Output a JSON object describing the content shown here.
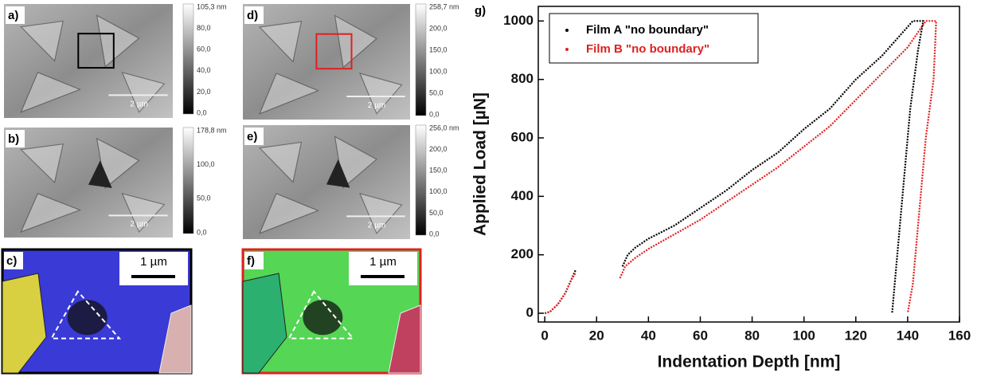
{
  "panels": [
    {
      "label": "a)",
      "colorbar": [
        "105,3 nm",
        "80,0",
        "60,0",
        "40,0",
        "20,0",
        "0,0"
      ],
      "scale": "2 µm"
    },
    {
      "label": "b)",
      "colorbar": [
        "178,8 nm",
        "100,0",
        "50,0",
        "0,0"
      ],
      "scale": "2 µm"
    },
    {
      "label": "c)",
      "scale": "1 µm"
    },
    {
      "label": "d)",
      "colorbar": [
        "258,7 nm",
        "200,0",
        "150,0",
        "100,0",
        "50,0",
        "0,0"
      ],
      "scale": "2 µm"
    },
    {
      "label": "e)",
      "colorbar": [
        "256,0 nm",
        "200,0",
        "150,0",
        "100,0",
        "50,0",
        "0,0"
      ],
      "scale": "2 µm"
    },
    {
      "label": "f)",
      "scale": "1 µm"
    }
  ],
  "chart_data": {
    "type": "line",
    "panel_label": "g)",
    "x_label": "Indentation Depth [nm]",
    "y_label": "Applied Load [µN]",
    "xlim": [
      -2.5,
      160
    ],
    "ylim": [
      -30,
      1050
    ],
    "xticks": [
      0,
      20,
      40,
      60,
      80,
      100,
      120,
      140,
      160
    ],
    "yticks": [
      0,
      200,
      400,
      600,
      800,
      1000
    ],
    "legend": "top-left",
    "series": [
      {
        "name": "Film A \"no boundary\"",
        "color": "#000000",
        "x": [
          0,
          2,
          5,
          8,
          10,
          12,
          null,
          30,
          32,
          35,
          40,
          50,
          60,
          70,
          80,
          90,
          100,
          110,
          120,
          130,
          138,
          142,
          146,
          144,
          141,
          138,
          136,
          134
        ],
        "values": [
          0,
          5,
          30,
          70,
          110,
          150,
          null,
          160,
          200,
          225,
          255,
          300,
          360,
          420,
          490,
          550,
          630,
          700,
          800,
          880,
          960,
          1000,
          1000,
          900,
          700,
          400,
          200,
          0
        ]
      },
      {
        "name": "Film B \"no boundary\"",
        "color": "#e02020",
        "x": [
          0,
          2,
          5,
          8,
          10,
          12,
          null,
          29,
          31,
          35,
          40,
          50,
          60,
          70,
          80,
          90,
          100,
          110,
          120,
          130,
          140,
          147,
          151,
          150,
          147,
          144,
          142,
          140
        ],
        "values": [
          0,
          5,
          30,
          70,
          110,
          140,
          null,
          120,
          160,
          190,
          220,
          270,
          320,
          380,
          440,
          500,
          570,
          640,
          730,
          820,
          910,
          1000,
          1000,
          800,
          600,
          300,
          100,
          0
        ]
      }
    ]
  }
}
